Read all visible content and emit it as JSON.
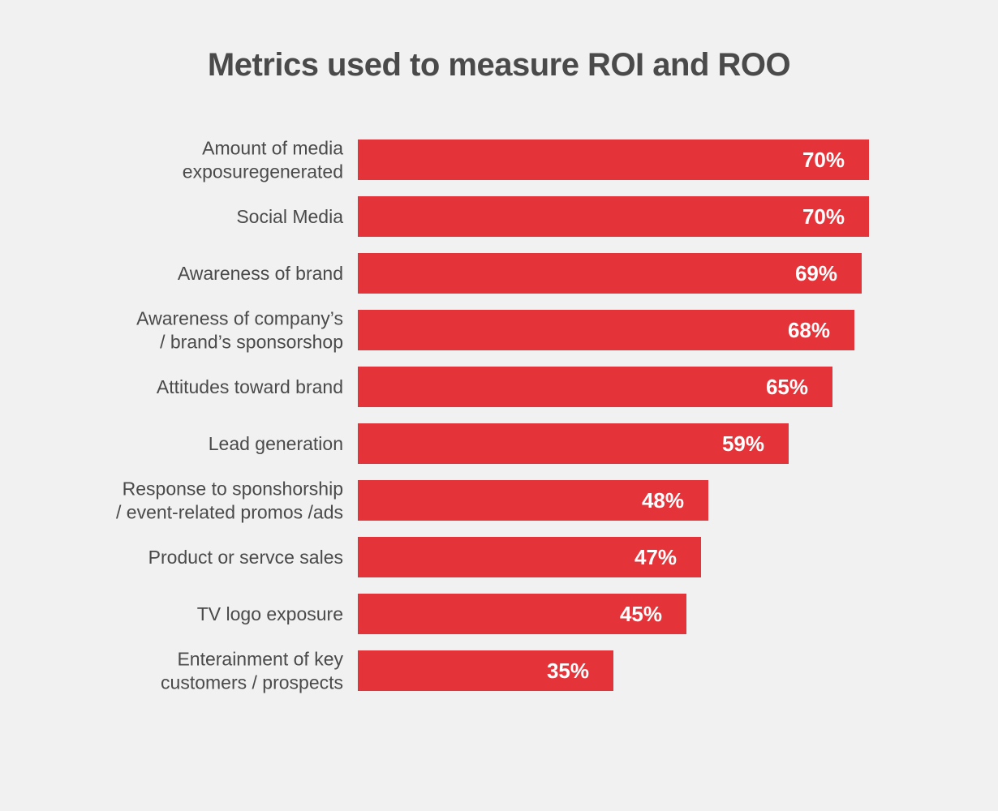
{
  "chart_data": {
    "type": "bar",
    "orientation": "horizontal",
    "title": "Metrics used to measure ROI and ROO",
    "xlabel": "",
    "ylabel": "",
    "xlim": [
      0,
      70
    ],
    "grid": false,
    "legend": "none",
    "categories": [
      [
        "Amount of media",
        "exposuregenerated"
      ],
      [
        "Social Media"
      ],
      [
        "Awareness of brand"
      ],
      [
        "Awareness of company’s",
        "/ brand’s sponsorshop"
      ],
      [
        "Attitudes toward brand"
      ],
      [
        "Lead generation"
      ],
      [
        "Response to sponshorship",
        "/ event-related promos /ads"
      ],
      [
        "Product or servce sales"
      ],
      [
        "TV logo exposure"
      ],
      [
        "Enterainment of key",
        "customers / prospects"
      ]
    ],
    "values": [
      70,
      70,
      69,
      68,
      65,
      59,
      48,
      47,
      45,
      35
    ],
    "value_labels": [
      "70%",
      "70%",
      "69%",
      "68%",
      "65%",
      "59%",
      "48%",
      "47%",
      "45%",
      "35%"
    ]
  },
  "colors": {
    "background": "#f1f1f1",
    "bar": "#e5333a",
    "text": "#4a4a4a",
    "value_text": "#ffffff"
  }
}
